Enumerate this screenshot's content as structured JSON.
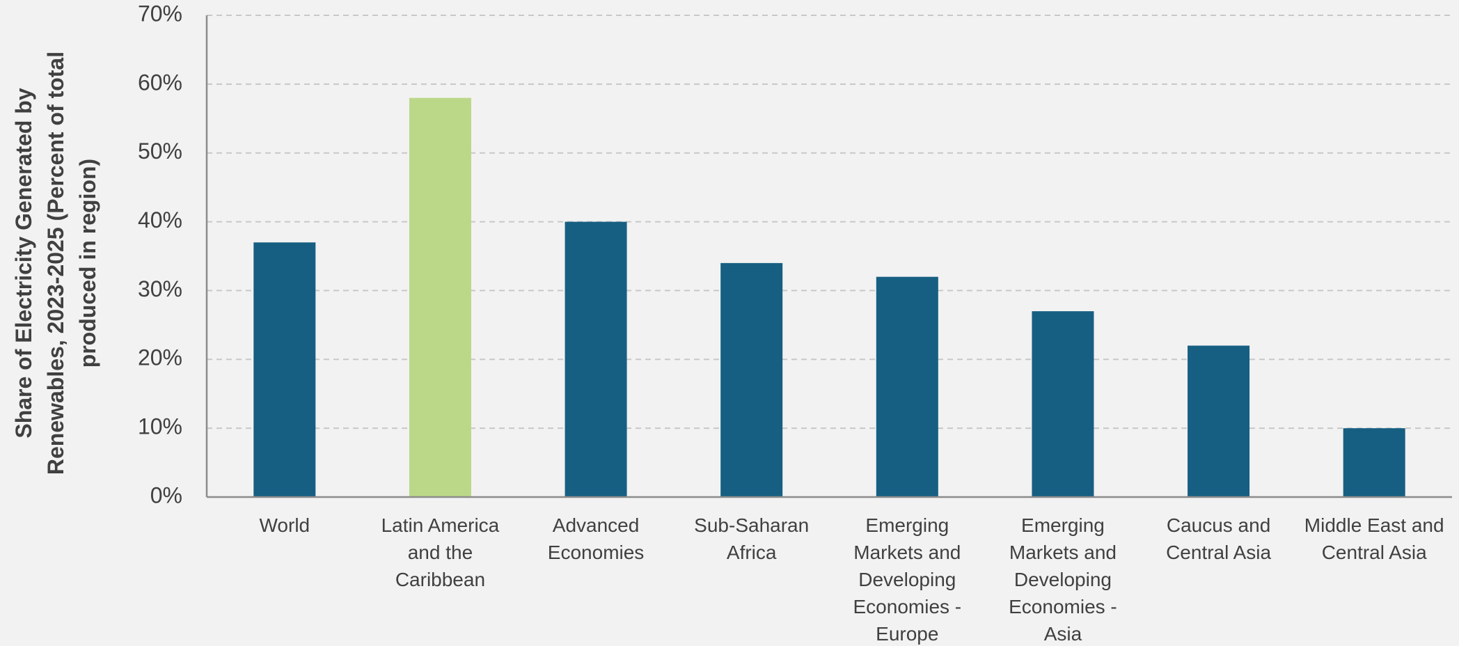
{
  "chart_data": {
    "type": "bar",
    "title": "",
    "xlabel": "",
    "ylabel": "Share of Electricity Generated by Renewables, 2023-2025 (Percent of total produced in region)",
    "ylim": [
      0,
      70
    ],
    "y_ticks": [
      0,
      10,
      20,
      30,
      40,
      50,
      60,
      70
    ],
    "y_tick_format": "percent",
    "grid": true,
    "legend": "none",
    "categories": [
      "World",
      "Latin America and the Caribbean",
      "Advanced Economies",
      "Sub-Saharan Africa",
      "Emerging Markets and Developing Economies - Europe",
      "Emerging Markets and Developing Economies - Asia",
      "Caucus and Central Asia",
      "Middle East and Central Asia"
    ],
    "values": [
      37,
      58,
      40,
      34,
      32,
      27,
      22,
      10
    ],
    "highlight_index": 1,
    "colors": {
      "bar": "#165f82",
      "highlight": "#bbd888",
      "background": "#f2f2f2",
      "text": "#404040",
      "grid": "#c8c8c8",
      "axis": "#8c8c8c"
    }
  }
}
